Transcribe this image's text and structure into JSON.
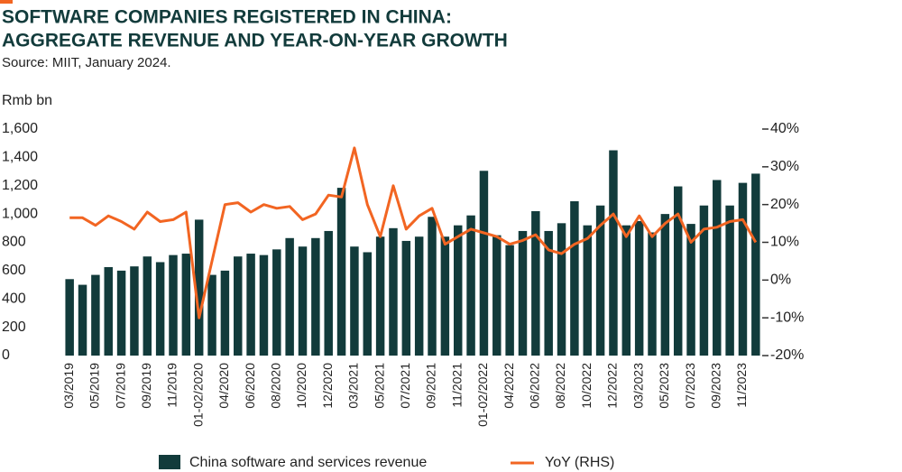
{
  "chart_data": {
    "type": "bar-line",
    "title": [
      "SOFTWARE COMPANIES REGISTERED IN CHINA:",
      "AGGREGATE REVENUE AND YEAR-ON-YEAR GROWTH"
    ],
    "subtitle": "Source: MIIT, January 2024.",
    "y_label": "Rmb bn",
    "categories": [
      "03/2019",
      null,
      "05/2019",
      null,
      "07/2019",
      null,
      "09/2019",
      null,
      "11/2019",
      null,
      "01-02/2020",
      null,
      "04/2020",
      null,
      "06/2020",
      null,
      "08/2020",
      null,
      "10/2020",
      null,
      "12/2020",
      null,
      "03/2021",
      null,
      "05/2021",
      null,
      "07/2021",
      null,
      "09/2021",
      null,
      "11/2021",
      null,
      "01-02/2022",
      null,
      "04/2022",
      null,
      "06/2022",
      null,
      "08/2022",
      null,
      "10/2022",
      null,
      "12/2022",
      null,
      "03/2023",
      null,
      "05/2023",
      null,
      "07/2023",
      null,
      "09/2023",
      null,
      "11/2023",
      null
    ],
    "series": [
      {
        "name": "China software and services revenue",
        "color": "#123b3b",
        "values": [
          540,
          500,
          570,
          625,
          600,
          630,
          700,
          660,
          710,
          720,
          960,
          570,
          600,
          700,
          720,
          710,
          750,
          830,
          770,
          830,
          880,
          1185,
          770,
          730,
          840,
          900,
          810,
          840,
          980,
          840,
          920,
          990,
          1305,
          850,
          780,
          880,
          1020,
          880,
          935,
          1090,
          920,
          1060,
          1450,
          920,
          950,
          870,
          1000,
          1195,
          930,
          1060,
          1240,
          1060,
          1220,
          1285
        ]
      },
      {
        "name": "YoY (RHS)",
        "color": "#f26522",
        "axis": "y2",
        "type": "line",
        "values": [
          16.5,
          16.5,
          14.5,
          17,
          15.5,
          13.5,
          18,
          15.5,
          16,
          18,
          -10,
          5,
          20,
          20.5,
          18,
          20,
          19,
          19.5,
          16,
          17.5,
          22.5,
          22,
          35,
          20,
          11.5,
          25,
          13.5,
          17,
          19,
          9.5,
          11.5,
          13.5,
          12.5,
          11.5,
          9.5,
          10.5,
          12,
          8,
          7,
          9.5,
          11,
          14.5,
          17.5,
          11.5,
          17,
          11.5,
          15,
          17.5,
          10,
          13.5,
          14,
          15.5,
          16,
          10
        ]
      }
    ],
    "ylim": [
      0,
      1600
    ],
    "yticks": [
      0,
      200,
      400,
      600,
      800,
      {
        "value": 1000,
        "label": "1,000"
      },
      {
        "value": 1200,
        "label": "1,200"
      },
      {
        "value": 1400,
        "label": "1,400"
      },
      {
        "value": 1600,
        "label": "1,600"
      }
    ],
    "y2lim": [
      -20,
      40
    ],
    "y2ticks": [
      {
        "value": -20,
        "label": "-20%"
      },
      {
        "value": -10,
        "label": "-10%"
      },
      {
        "value": 0,
        "label": "0%"
      },
      {
        "value": 10,
        "label": "10%"
      },
      {
        "value": 20,
        "label": "20%"
      },
      {
        "value": 30,
        "label": "30%"
      },
      {
        "value": 40,
        "label": "40%"
      }
    ],
    "accent_color": "#f26522"
  }
}
